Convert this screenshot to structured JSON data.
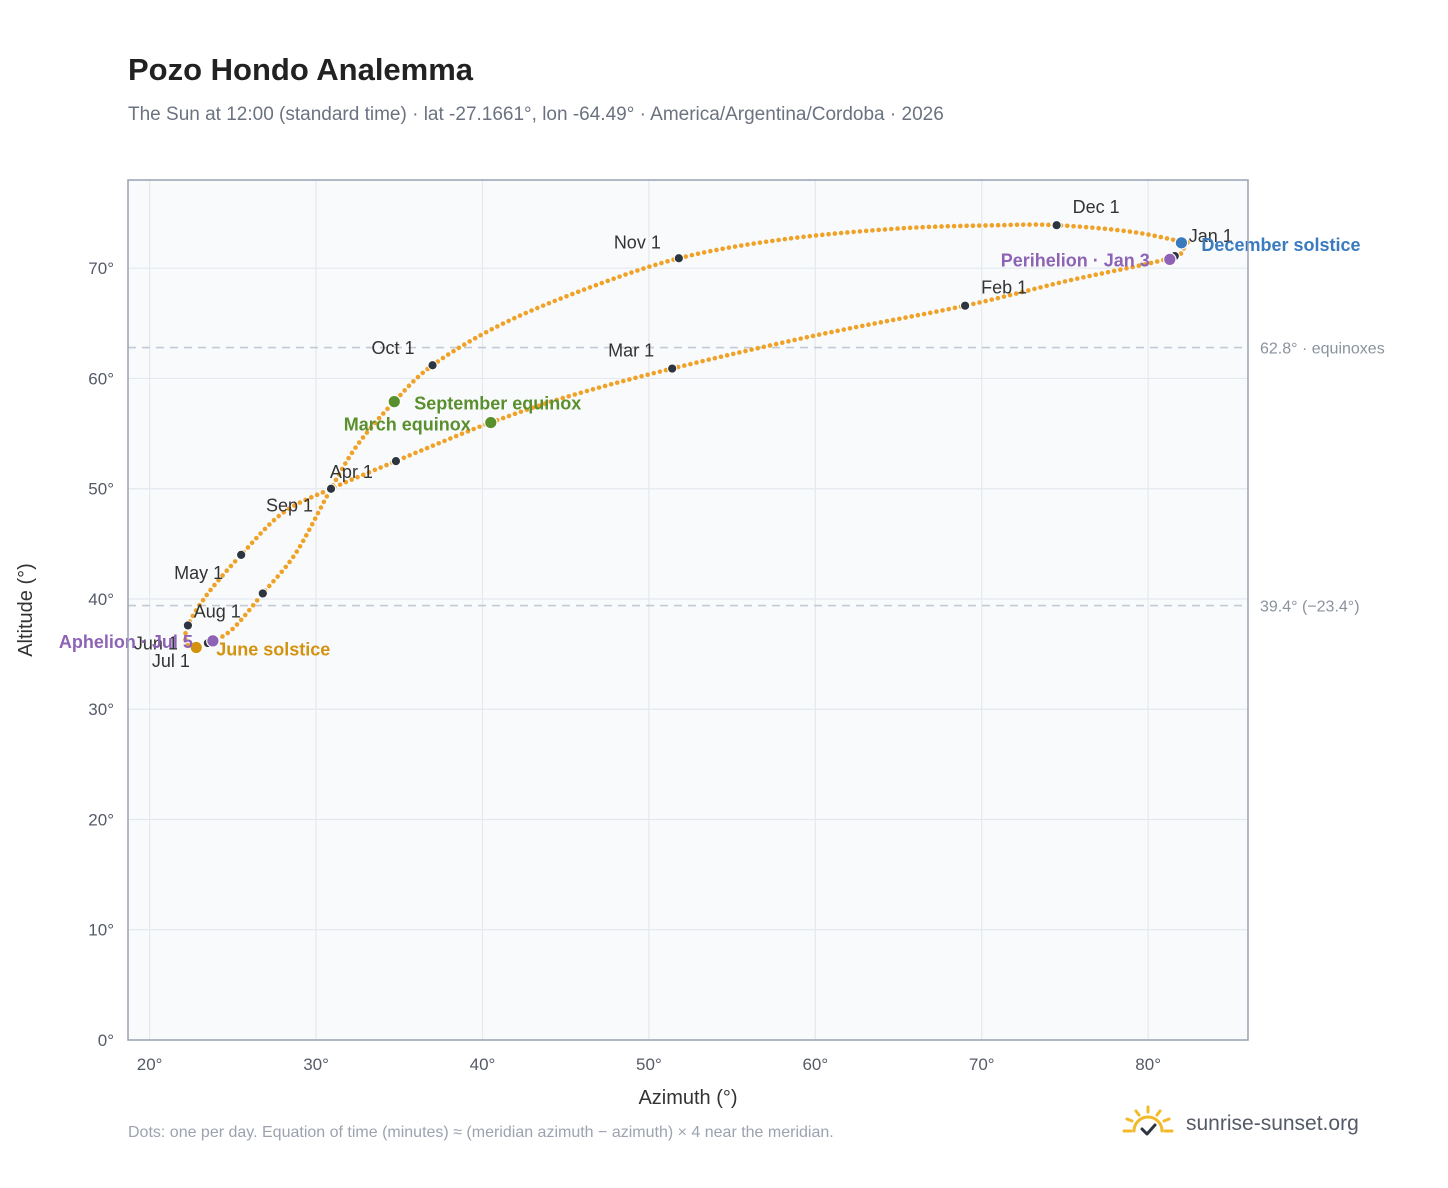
{
  "title": "Pozo Hondo Analemma",
  "subtitle": "The Sun at 12:00 (standard time) · lat -27.1661°, lon -64.49° · America/Argentina/Cordoba · 2026",
  "footnote": "Dots: one per day. Equation of time (minutes) ≈ (meridian azimuth − azimuth) × 4 near the meridian.",
  "brand": "sunrise-sunset.org",
  "colors": {
    "path": "#f0a227",
    "month_marker": "#2d3540",
    "equinox": "#5a8f2e",
    "june_solstice": "#d4930f",
    "december_solstice": "#3a7bbf",
    "apsis": "#8e63b5",
    "reference_line": "#c3cad3",
    "grid": "#e5e9ef",
    "plot_bg": "#f8fafc",
    "frame": "#98a2b0"
  },
  "chart_data": {
    "type": "scatter",
    "xlabel": "Azimuth (°)",
    "ylabel": "Altitude (°)",
    "xlim": [
      18.7,
      86
    ],
    "ylim": [
      0,
      78
    ],
    "xticks": [
      20,
      30,
      40,
      50,
      60,
      70,
      80
    ],
    "yticks": [
      0,
      10,
      20,
      30,
      40,
      50,
      60,
      70
    ],
    "tick_suffix": "°",
    "grid": true,
    "path_waypoints": [
      {
        "x": 82.0,
        "y": 72.3
      },
      {
        "x": 81.5,
        "y": 71.0
      },
      {
        "x": 75.0,
        "y": 68.8
      },
      {
        "x": 69.0,
        "y": 66.6
      },
      {
        "x": 60.0,
        "y": 63.9
      },
      {
        "x": 51.4,
        "y": 60.9
      },
      {
        "x": 45.0,
        "y": 58.3
      },
      {
        "x": 40.5,
        "y": 56.0
      },
      {
        "x": 37.5,
        "y": 54.2
      },
      {
        "x": 34.8,
        "y": 52.5
      },
      {
        "x": 30.9,
        "y": 50.0
      },
      {
        "x": 28.0,
        "y": 47.8
      },
      {
        "x": 25.5,
        "y": 44.0
      },
      {
        "x": 23.5,
        "y": 40.5
      },
      {
        "x": 22.3,
        "y": 37.6
      },
      {
        "x": 22.2,
        "y": 36.0
      },
      {
        "x": 22.8,
        "y": 35.6
      },
      {
        "x": 23.7,
        "y": 36.1
      },
      {
        "x": 25.0,
        "y": 37.3
      },
      {
        "x": 26.8,
        "y": 40.5
      },
      {
        "x": 28.8,
        "y": 44.2
      },
      {
        "x": 30.9,
        "y": 50.0
      },
      {
        "x": 32.5,
        "y": 54.0
      },
      {
        "x": 34.7,
        "y": 57.9
      },
      {
        "x": 37.0,
        "y": 61.2
      },
      {
        "x": 41.0,
        "y": 64.8
      },
      {
        "x": 46.0,
        "y": 68.0
      },
      {
        "x": 51.8,
        "y": 70.9
      },
      {
        "x": 58.0,
        "y": 72.6
      },
      {
        "x": 65.0,
        "y": 73.6
      },
      {
        "x": 71.0,
        "y": 73.9
      },
      {
        "x": 74.5,
        "y": 73.9
      },
      {
        "x": 79.0,
        "y": 73.3
      },
      {
        "x": 82.3,
        "y": 72.3
      }
    ],
    "month_markers": [
      {
        "label": "Jan 1",
        "x": 81.6,
        "y": 71.1
      },
      {
        "label": "Feb 1",
        "x": 69.0,
        "y": 66.6
      },
      {
        "label": "Mar 1",
        "x": 51.4,
        "y": 60.9
      },
      {
        "label": "Apr 1",
        "x": 34.8,
        "y": 52.5
      },
      {
        "label": "May 1",
        "x": 25.5,
        "y": 44.0
      },
      {
        "label": "Jun 1",
        "x": 22.3,
        "y": 37.6
      },
      {
        "label": "Jul 1",
        "x": 23.5,
        "y": 36.0
      },
      {
        "label": "Aug 1",
        "x": 26.8,
        "y": 40.5
      },
      {
        "label": "Sep 1",
        "x": 30.9,
        "y": 50.0
      },
      {
        "label": "Oct 1",
        "x": 37.0,
        "y": 61.2
      },
      {
        "label": "Nov 1",
        "x": 51.8,
        "y": 70.9
      },
      {
        "label": "Dec 1",
        "x": 74.5,
        "y": 73.9
      }
    ],
    "events": [
      {
        "label": "March equinox",
        "x": 40.5,
        "y": 56.0,
        "kind": "equinox"
      },
      {
        "label": "September equinox",
        "x": 34.7,
        "y": 57.9,
        "kind": "equinox"
      },
      {
        "label": "June solstice",
        "x": 22.8,
        "y": 35.6,
        "kind": "june_solstice"
      },
      {
        "label": "December solstice",
        "x": 82.0,
        "y": 72.3,
        "kind": "december_solstice"
      },
      {
        "label": "Aphelion · Jul 5",
        "x": 23.8,
        "y": 36.2,
        "kind": "apsis"
      },
      {
        "label": "Perihelion · Jan 3",
        "x": 81.3,
        "y": 70.8,
        "kind": "apsis"
      }
    ],
    "reference_lines": [
      {
        "y": 62.8,
        "label": "62.8° · equinoxes"
      },
      {
        "y": 39.4,
        "label": "39.4° (−23.4°)"
      }
    ]
  }
}
